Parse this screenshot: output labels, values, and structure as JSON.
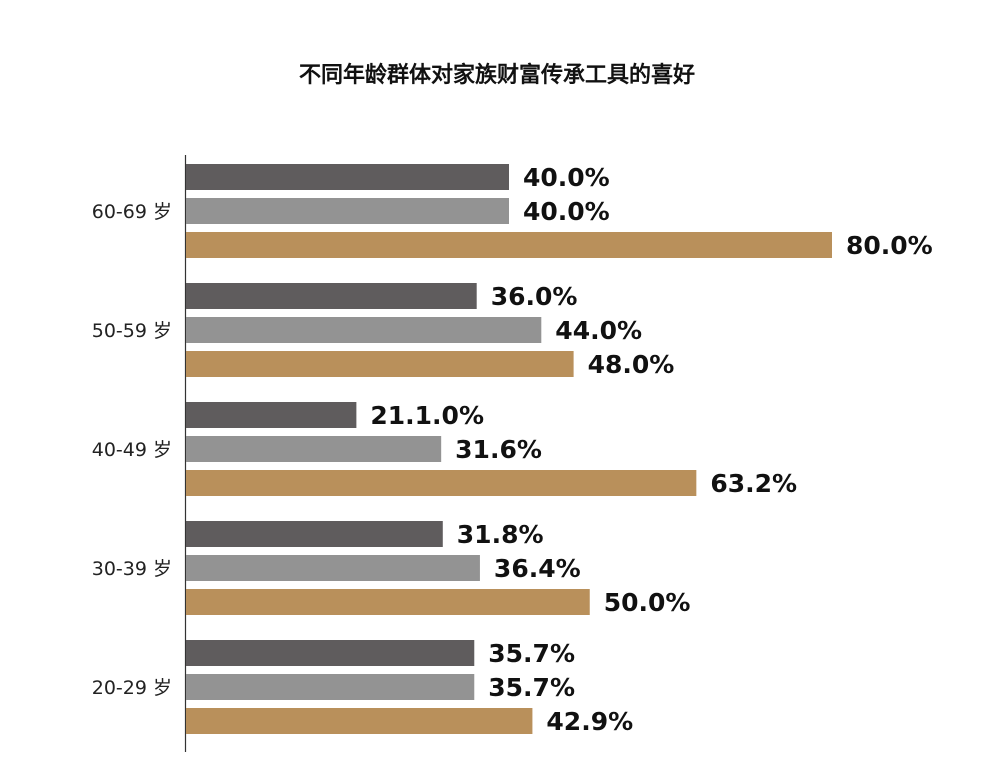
{
  "chart_data": {
    "type": "bar",
    "orientation": "horizontal",
    "title": "不同年龄群体对家族财富传承工具的喜好",
    "xlabel": "",
    "ylabel": "",
    "xlim": [
      0,
      100
    ],
    "grid": false,
    "legend": "none",
    "categories": [
      "60-69 岁",
      "50-59 岁",
      "40-49 岁",
      "30-39 岁",
      "20-29 岁"
    ],
    "series": [
      {
        "color": "#5f5c5d",
        "values": [
          40.0,
          36.0,
          21.1,
          31.8,
          35.7
        ],
        "labels": [
          "40.0%",
          "36.0%",
          "21.1.0%",
          "31.8%",
          "35.7%"
        ]
      },
      {
        "color": "#939393",
        "values": [
          40.0,
          44.0,
          31.6,
          36.4,
          35.7
        ],
        "labels": [
          "40.0%",
          "44.0%",
          "31.6%",
          "36.4%",
          "35.7%"
        ]
      },
      {
        "color": "#b9905b",
        "values": [
          80.0,
          48.0,
          63.2,
          50.0,
          42.9
        ],
        "labels": [
          "80.0%",
          "48.0%",
          "63.2%",
          "50.0%",
          "42.9%"
        ]
      }
    ]
  }
}
